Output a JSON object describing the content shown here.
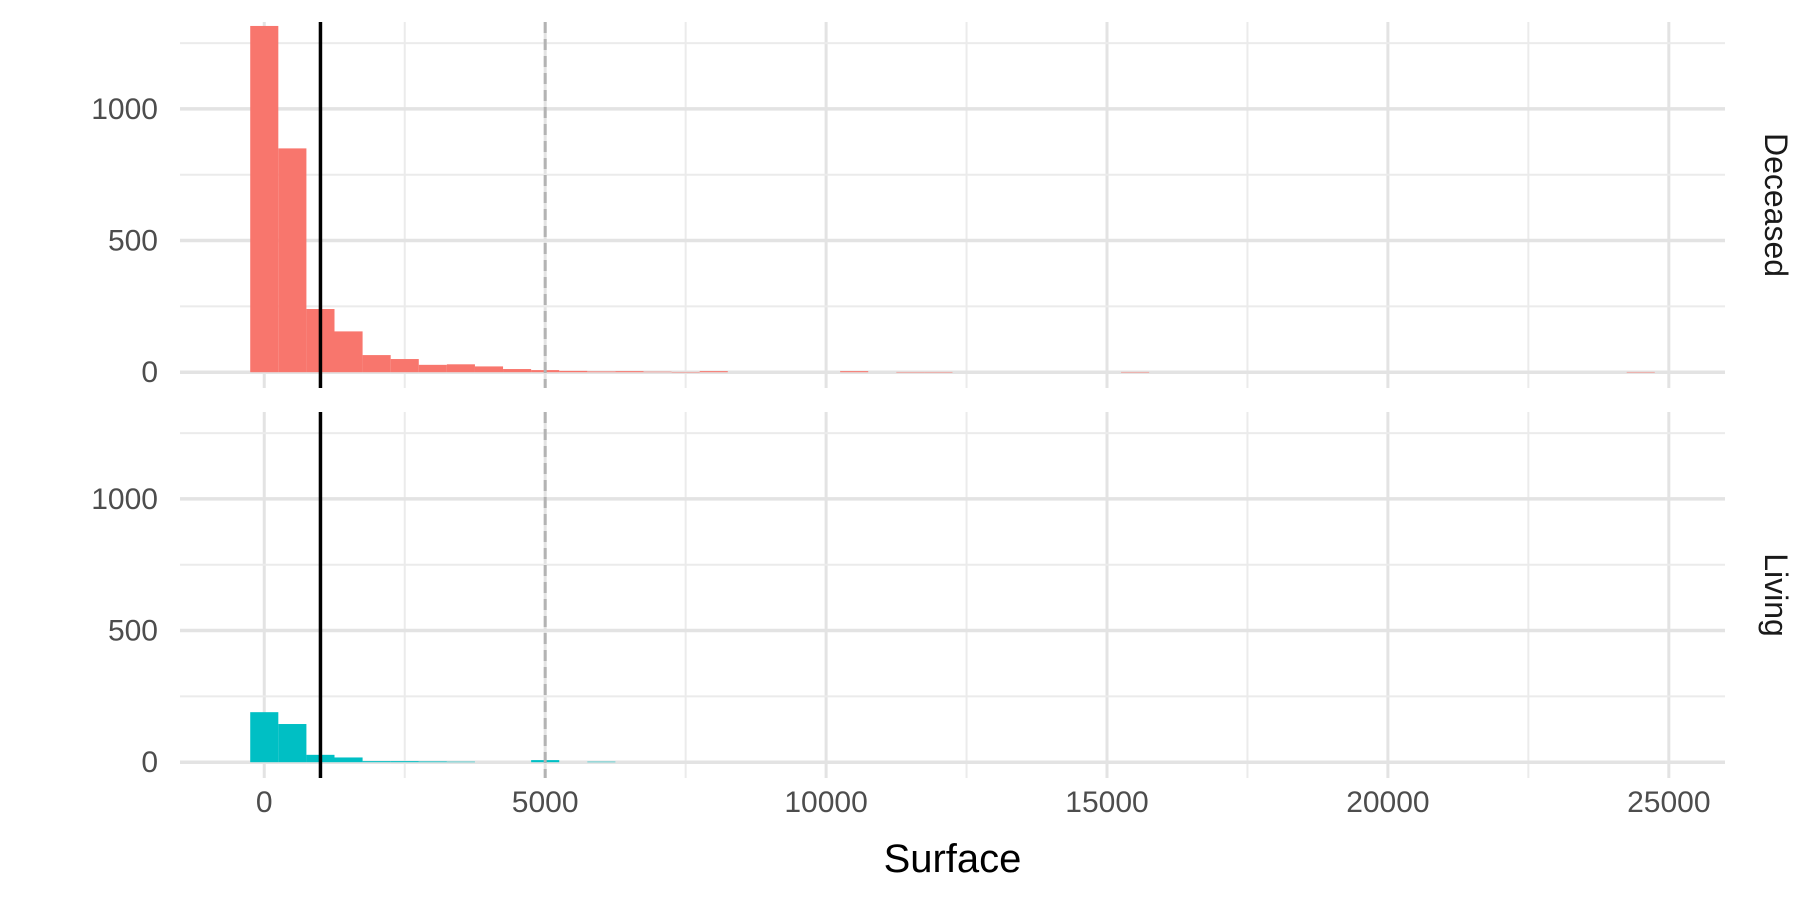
{
  "chart_data": {
    "type": "bar",
    "subtype": "faceted histogram",
    "title": "",
    "xlabel": "Surface",
    "ylabel": "",
    "xlim": [
      -1500,
      26000
    ],
    "ylim": [
      -60,
      1330
    ],
    "bin_width": 500,
    "x_ticks": [
      0,
      5000,
      10000,
      15000,
      20000,
      25000
    ],
    "y_ticks": [
      0,
      500,
      1000
    ],
    "grid": true,
    "legend": "none",
    "reference_lines": [
      {
        "x": 1000,
        "style": "solid",
        "color": "#000000"
      },
      {
        "x": 5000,
        "style": "dashed",
        "color": "#b3b3b3"
      }
    ],
    "facets": [
      {
        "label": "Deceased",
        "color": "#F8766D",
        "bins": [
          {
            "x": 0,
            "count": 1315
          },
          {
            "x": 500,
            "count": 850
          },
          {
            "x": 1000,
            "count": 240
          },
          {
            "x": 1500,
            "count": 155
          },
          {
            "x": 2000,
            "count": 65
          },
          {
            "x": 2500,
            "count": 50
          },
          {
            "x": 3000,
            "count": 28
          },
          {
            "x": 3500,
            "count": 30
          },
          {
            "x": 4000,
            "count": 22
          },
          {
            "x": 4500,
            "count": 12
          },
          {
            "x": 5000,
            "count": 8
          },
          {
            "x": 5500,
            "count": 5
          },
          {
            "x": 6000,
            "count": 3
          },
          {
            "x": 6500,
            "count": 4
          },
          {
            "x": 7000,
            "count": 2
          },
          {
            "x": 7500,
            "count": 1
          },
          {
            "x": 8000,
            "count": 4
          },
          {
            "x": 10500,
            "count": 4
          },
          {
            "x": 11500,
            "count": 1
          },
          {
            "x": 12000,
            "count": 1
          },
          {
            "x": 15500,
            "count": 1
          },
          {
            "x": 24500,
            "count": 1
          }
        ]
      },
      {
        "label": "Living",
        "color": "#00BFC4",
        "bins": [
          {
            "x": 0,
            "count": 190
          },
          {
            "x": 500,
            "count": 145
          },
          {
            "x": 1000,
            "count": 28
          },
          {
            "x": 1500,
            "count": 18
          },
          {
            "x": 2000,
            "count": 4
          },
          {
            "x": 2500,
            "count": 4
          },
          {
            "x": 3000,
            "count": 3
          },
          {
            "x": 3500,
            "count": 2
          },
          {
            "x": 5000,
            "count": 8
          },
          {
            "x": 6000,
            "count": 2
          }
        ]
      }
    ]
  }
}
